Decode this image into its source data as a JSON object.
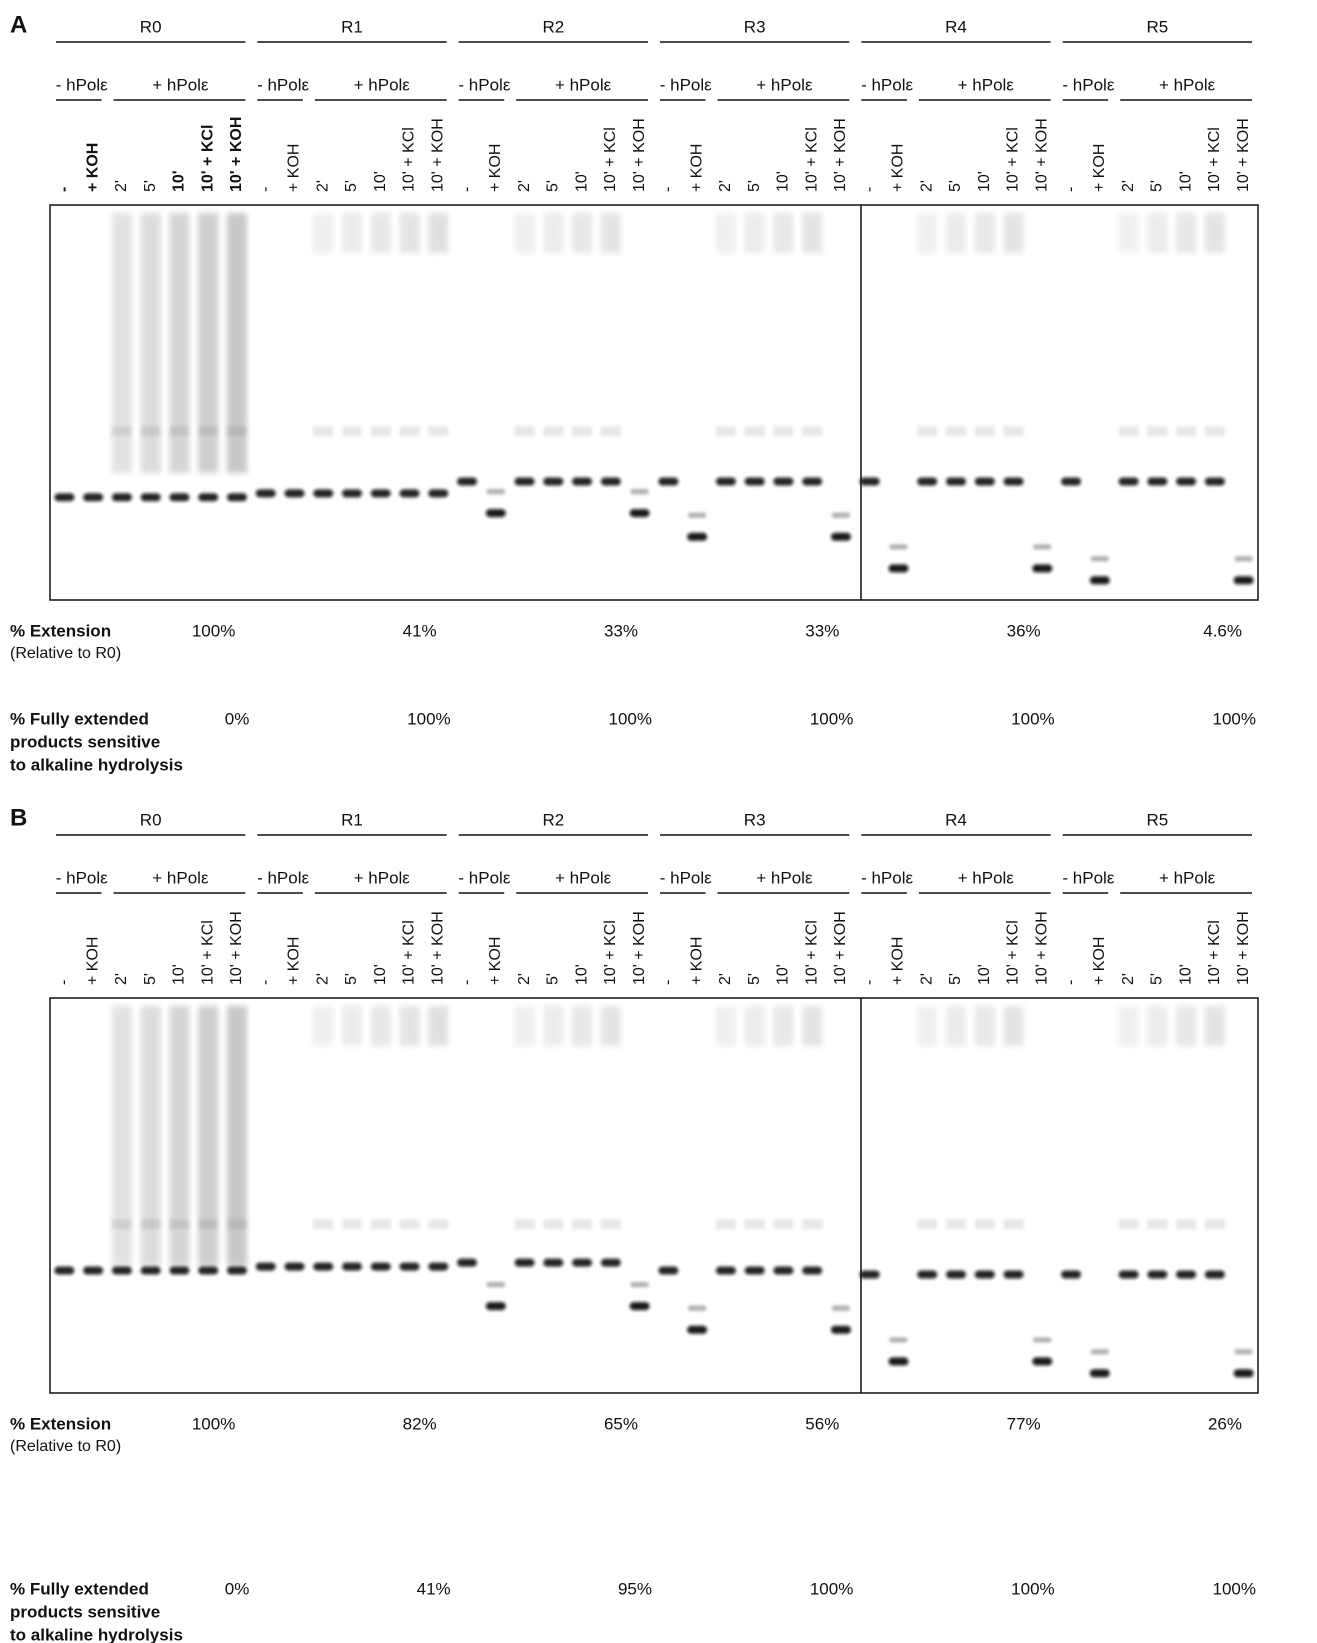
{
  "panels": [
    {
      "letter": "A",
      "groups": [
        "R0",
        "R1",
        "R2",
        "R3",
        "R4",
        "R5"
      ],
      "minus": "- hPolε",
      "plus": "+ hPolε",
      "lanes": [
        "-",
        "+ KOH",
        "2'",
        "5'",
        "10'",
        "10' + KCl",
        "10' + KOH"
      ],
      "extension": {
        "label": "% Extension",
        "sublabel": "(Relative to R0)",
        "values": [
          "100%",
          "41%",
          "33%",
          "33%",
          "36%",
          "4.6%"
        ]
      },
      "fully_extended": {
        "label_lines": [
          "% Fully extended",
          "products sensitive",
          "to alkaline hydrolysis"
        ],
        "values": [
          "0%",
          "100%",
          "100%",
          "100%",
          "100%",
          "100%"
        ]
      }
    },
    {
      "letter": "B",
      "groups": [
        "R0",
        "R1",
        "R2",
        "R3",
        "R4",
        "R5"
      ],
      "minus": "- hPolε",
      "plus": "+ hPolε",
      "lanes": [
        "-",
        "+ KOH",
        "2'",
        "5'",
        "10'",
        "10' + KCl",
        "10' + KOH"
      ],
      "extension": {
        "label": "% Extension",
        "sublabel": "(Relative to R0)",
        "values": [
          "100%",
          "82%",
          "65%",
          "56%",
          "77%",
          "26%"
        ]
      },
      "fully_extended": {
        "label_lines": [
          "% Fully extended",
          "products sensitive",
          "to alkaline hydrolysis"
        ],
        "values": [
          "0%",
          "41%",
          "95%",
          "100%",
          "100%",
          "100%"
        ]
      }
    }
  ]
}
